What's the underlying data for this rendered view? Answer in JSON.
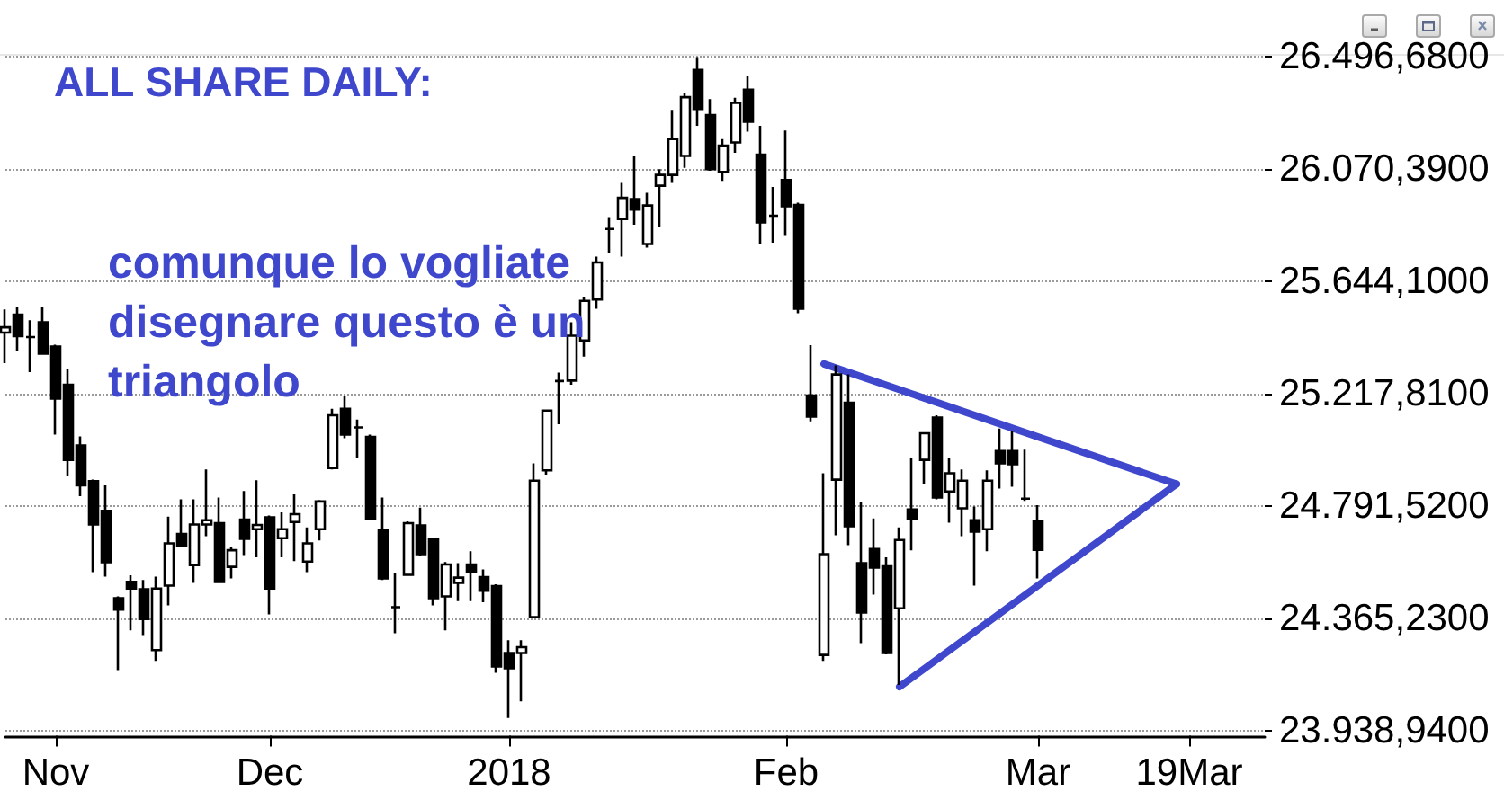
{
  "chart_data": {
    "type": "candlestick",
    "title": "ALL SHARE DAILY:",
    "annotations": [
      "comunque lo vogliate disegnare questo è un triangolo"
    ],
    "categories": [
      null,
      null,
      null,
      null,
      "Nov",
      null,
      null,
      null,
      null,
      null,
      null,
      null,
      null,
      null,
      null,
      null,
      null,
      null,
      null,
      null,
      null,
      "Dec",
      null,
      null,
      null,
      null,
      null,
      null,
      null,
      null,
      null,
      null,
      null,
      null,
      null,
      null,
      null,
      null,
      null,
      null,
      "2018",
      null,
      null,
      null,
      null,
      null,
      null,
      null,
      null,
      null,
      null,
      null,
      null,
      null,
      null,
      null,
      null,
      null,
      null,
      null,
      null,
      null,
      "Feb",
      null,
      null,
      null,
      null,
      null,
      null,
      null,
      null,
      null,
      null,
      null,
      null,
      null,
      null,
      null,
      null,
      null,
      null,
      null,
      "Mar",
      null,
      null,
      null,
      null,
      null,
      null,
      null,
      null,
      null,
      null,
      null,
      "19Mar",
      null,
      null,
      null,
      null,
      null,
      null
    ],
    "color": "#000000",
    "ohlc": [
      [
        25450,
        25538,
        25334,
        25470
      ],
      [
        25518,
        25545,
        25382,
        25436
      ],
      [
        25433,
        25497,
        25300,
        25433
      ],
      [
        25489,
        25545,
        25366,
        25370
      ],
      [
        25397,
        25404,
        25063,
        25199
      ],
      [
        25252,
        25313,
        24904,
        24967
      ],
      [
        25022,
        25056,
        24829,
        24870
      ],
      [
        24886,
        24892,
        24541,
        24722
      ],
      [
        24774,
        24870,
        24524,
        24579
      ],
      [
        24442,
        24449,
        24169,
        24399
      ],
      [
        24504,
        24529,
        24320,
        24479
      ],
      [
        24476,
        24511,
        24302,
        24363
      ],
      [
        24245,
        24524,
        24204,
        24479
      ],
      [
        24490,
        24752,
        24415,
        24650
      ],
      [
        24686,
        24817,
        24636,
        24640
      ],
      [
        24568,
        24817,
        24500,
        24722
      ],
      [
        24722,
        24931,
        24677,
        24738
      ],
      [
        24727,
        24824,
        24500,
        24504
      ],
      [
        24561,
        24636,
        24517,
        24624
      ],
      [
        24740,
        24849,
        24606,
        24667
      ],
      [
        24704,
        24890,
        24597,
        24720
      ],
      [
        24749,
        24756,
        24381,
        24479
      ],
      [
        24670,
        24768,
        24597,
        24704
      ],
      [
        24731,
        24836,
        24583,
        24761
      ],
      [
        24581,
        24711,
        24541,
        24650
      ],
      [
        24704,
        24815,
        24661,
        24809
      ],
      [
        24936,
        25161,
        24931,
        25136
      ],
      [
        25161,
        25211,
        25049,
        25063
      ],
      [
        25090,
        25120,
        24972,
        25090
      ],
      [
        25054,
        25063,
        24740,
        24742
      ],
      [
        24699,
        24824,
        24511,
        24517
      ],
      [
        24408,
        24536,
        24309,
        24408
      ],
      [
        24531,
        24734,
        24527,
        24727
      ],
      [
        24718,
        24786,
        24604,
        24609
      ],
      [
        24665,
        24670,
        24415,
        24442
      ],
      [
        24449,
        24579,
        24320,
        24570
      ],
      [
        24500,
        24575,
        24431,
        24520
      ],
      [
        24570,
        24620,
        24431,
        24541
      ],
      [
        24522,
        24551,
        24427,
        24470
      ],
      [
        24488,
        24495,
        24159,
        24183
      ],
      [
        24234,
        24283,
        23988,
        24176
      ],
      [
        24234,
        24283,
        24051,
        24256
      ],
      [
        24370,
        24954,
        24365,
        24888
      ],
      [
        24927,
        25154,
        24911,
        25154
      ],
      [
        25266,
        25298,
        25102,
        25266
      ],
      [
        25268,
        25489,
        25252,
        25438
      ],
      [
        25420,
        25586,
        25359,
        25570
      ],
      [
        25575,
        25738,
        25540,
        25716
      ],
      [
        25843,
        25888,
        25752,
        25843
      ],
      [
        25881,
        26018,
        25738,
        25961
      ],
      [
        25956,
        26120,
        25859,
        25916
      ],
      [
        25786,
        25980,
        25772,
        25932
      ],
      [
        26007,
        26070,
        25852,
        26048
      ],
      [
        26048,
        26295,
        26018,
        26184
      ],
      [
        26120,
        26359,
        26075,
        26343
      ],
      [
        26446,
        26495,
        26234,
        26298
      ],
      [
        26275,
        26336,
        26064,
        26070
      ],
      [
        26059,
        26184,
        26025,
        26159
      ],
      [
        26171,
        26341,
        26132,
        26321
      ],
      [
        26371,
        26425,
        26212,
        26250
      ],
      [
        26125,
        26234,
        25784,
        25868
      ],
      [
        25893,
        26002,
        25791,
        25893
      ],
      [
        26029,
        26216,
        25820,
        25929
      ],
      [
        25934,
        25943,
        25523,
        25540
      ],
      [
        25211,
        25402,
        25113,
        25131
      ],
      [
        24227,
        24916,
        24204,
        24609
      ],
      [
        24892,
        25325,
        24681,
        25291
      ],
      [
        25184,
        25291,
        24643,
        24715
      ],
      [
        24575,
        24807,
        24272,
        24388
      ],
      [
        24629,
        24745,
        24456,
        24558
      ],
      [
        24563,
        24597,
        24229,
        24234
      ],
      [
        24404,
        24711,
        24113,
        24663
      ],
      [
        24779,
        24972,
        24624,
        24742
      ],
      [
        24967,
        25068,
        24875,
        25068
      ],
      [
        25127,
        25136,
        24817,
        24824
      ],
      [
        24847,
        24972,
        24729,
        24916
      ],
      [
        24783,
        24931,
        24677,
        24888
      ],
      [
        24738,
        24790,
        24490,
        24695
      ],
      [
        24704,
        24927,
        24620,
        24888
      ],
      [
        25000,
        25086,
        24858,
        24954
      ],
      [
        25000,
        25075,
        24865,
        24950
      ],
      [
        24820,
        25006,
        24811,
        24820
      ],
      [
        24734,
        24795,
        24517,
        24626
      ],
      null,
      null,
      null,
      null,
      null,
      null,
      null,
      null,
      null,
      null,
      null,
      null,
      null,
      null,
      null,
      null,
      null,
      null
    ],
    "series": [
      {
        "type": "line",
        "color": "#3f48cc",
        "values": [
          null,
          null,
          null,
          null,
          null,
          null,
          null,
          null,
          null,
          null,
          null,
          null,
          null,
          null,
          null,
          null,
          null,
          null,
          null,
          null,
          null,
          null,
          null,
          null,
          null,
          null,
          null,
          null,
          null,
          null,
          null,
          null,
          null,
          null,
          null,
          null,
          null,
          null,
          null,
          null,
          null,
          null,
          null,
          null,
          null,
          null,
          null,
          null,
          null,
          null,
          null,
          null,
          null,
          null,
          null,
          null,
          null,
          null,
          null,
          null,
          null,
          null,
          null,
          null,
          null,
          25331,
          null,
          null,
          null,
          null,
          null,
          null,
          null,
          null,
          null,
          null,
          null,
          null,
          null,
          null,
          null,
          null,
          null,
          null,
          null,
          null,
          null,
          null,
          null,
          null,
          null,
          null,
          null,
          24875,
          null,
          null,
          null,
          null,
          null,
          null,
          null
        ]
      },
      {
        "type": "line",
        "color": "#3f48cc",
        "values": [
          null,
          null,
          null,
          null,
          null,
          null,
          null,
          null,
          null,
          null,
          null,
          null,
          null,
          null,
          null,
          null,
          null,
          null,
          null,
          null,
          null,
          null,
          null,
          null,
          null,
          null,
          null,
          null,
          null,
          null,
          null,
          null,
          null,
          null,
          null,
          null,
          null,
          null,
          null,
          null,
          null,
          null,
          null,
          null,
          null,
          null,
          null,
          null,
          null,
          null,
          null,
          null,
          null,
          null,
          null,
          null,
          null,
          null,
          null,
          null,
          null,
          null,
          null,
          null,
          null,
          null,
          null,
          null,
          null,
          null,
          null,
          24106,
          null,
          null,
          null,
          null,
          null,
          null,
          null,
          null,
          null,
          null,
          null,
          null,
          null,
          null,
          null,
          null,
          null,
          null,
          null,
          null,
          null,
          24875,
          null,
          null,
          null,
          null,
          null,
          null,
          null
        ]
      }
    ],
    "ylim": [
      23920,
      26505
    ],
    "yticks": [
      {
        "value": 23938.94,
        "label": "23.938,9400"
      },
      {
        "value": 24365.23,
        "label": "24.365,2300"
      },
      {
        "value": 24791.52,
        "label": "24.791,5200"
      },
      {
        "value": 25217.81,
        "label": "25.217,8100"
      },
      {
        "value": 25644.1,
        "label": "25.644,1000"
      },
      {
        "value": 26070.39,
        "label": "26.070,3900"
      },
      {
        "value": 26496.68,
        "label": "26.496,6800"
      }
    ],
    "grid": "y"
  }
}
